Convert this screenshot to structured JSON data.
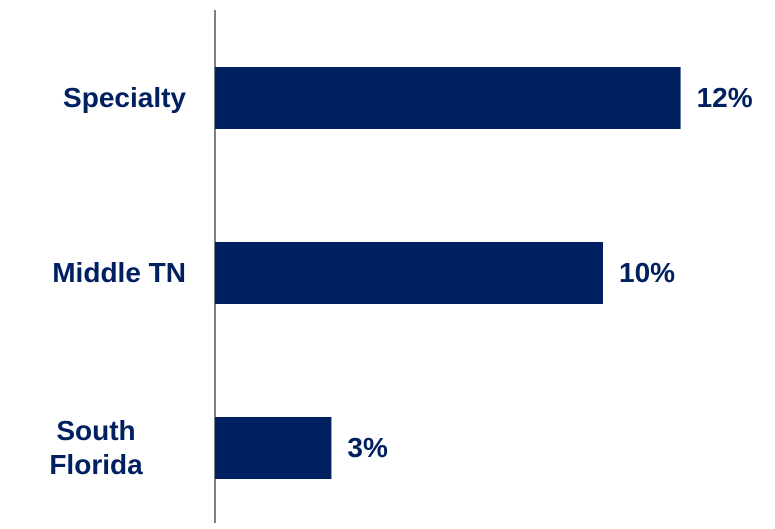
{
  "chart_data": {
    "type": "bar",
    "orientation": "horizontal",
    "categories": [
      "Specialty",
      "Middle TN",
      "South Florida"
    ],
    "values": [
      12,
      10,
      3
    ],
    "value_labels": [
      "12%",
      "10%",
      "3%"
    ],
    "color": "#002060"
  }
}
